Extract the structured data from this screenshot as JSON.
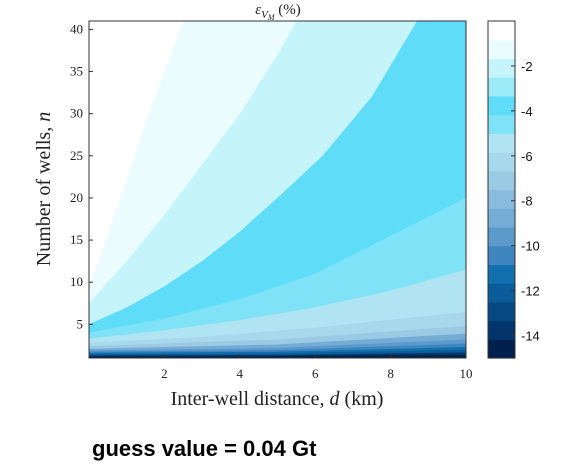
{
  "chart_data": {
    "type": "heatmap",
    "subtype": "filled-contour",
    "title_base": "ε",
    "title_sub": "V",
    "title_subsub": "M",
    "title_suffix": " (%)",
    "xlabel": "Inter-well distance, d (km)",
    "xlabel_parts": [
      "Inter-well distance, ",
      "d",
      " (km)"
    ],
    "ylabel": "Number of wells, n",
    "ylabel_parts": [
      "Number of wells, ",
      "n"
    ],
    "xlim": [
      0,
      10
    ],
    "ylim": [
      1,
      41
    ],
    "x_ticks": [
      2,
      4,
      6,
      8,
      10
    ],
    "y_ticks": [
      5,
      10,
      15,
      20,
      25,
      30,
      35,
      40
    ],
    "colorbar": {
      "range": [
        -15,
        0
      ],
      "ticks": [
        -2,
        -4,
        -6,
        -8,
        -10,
        -12,
        -14
      ],
      "colors": [
        "#00204e",
        "#03356a",
        "#064982",
        "#0a5d99",
        "#1170ad",
        "#3e86bf",
        "#5c9acc",
        "#74acd6",
        "#88bbdd",
        "#9acae4",
        "#a8d8ec",
        "#b0e4f2",
        "#80e2f6",
        "#5edcf8",
        "#9aeaf8",
        "#c6f4fb",
        "#eafcfe",
        "#ffffff"
      ]
    },
    "contours": [
      {
        "level": -1,
        "points": [
          [
            0,
            9.5
          ],
          [
            0.3,
            13
          ],
          [
            0.6,
            17
          ],
          [
            1,
            22
          ],
          [
            1.5,
            29
          ],
          [
            2,
            35
          ],
          [
            2.5,
            41
          ]
        ]
      },
      {
        "level": -2,
        "points": [
          [
            0,
            7.5
          ],
          [
            0.5,
            10
          ],
          [
            1,
            12.5
          ],
          [
            2,
            18
          ],
          [
            3,
            24
          ],
          [
            4,
            30
          ],
          [
            5,
            37
          ],
          [
            5.5,
            41
          ]
        ]
      },
      {
        "level": -3,
        "points": [
          [
            0,
            5
          ],
          [
            1,
            7
          ],
          [
            2,
            9.5
          ],
          [
            3,
            12.5
          ],
          [
            4,
            16
          ],
          [
            5,
            20
          ],
          [
            6.2,
            25
          ],
          [
            7.5,
            32
          ],
          [
            8.7,
            41
          ]
        ]
      },
      {
        "level": -4,
        "points": [
          [
            0,
            4
          ],
          [
            2,
            5.7
          ],
          [
            4,
            8
          ],
          [
            6,
            11
          ],
          [
            8,
            15.5
          ],
          [
            10,
            20
          ]
        ]
      },
      {
        "level": -5,
        "points": [
          [
            0,
            3.3
          ],
          [
            2,
            4.3
          ],
          [
            4,
            5.5
          ],
          [
            6,
            7
          ],
          [
            8,
            9
          ],
          [
            10,
            11.5
          ]
        ]
      },
      {
        "level": -6,
        "points": [
          [
            0,
            2.8
          ],
          [
            3,
            3.5
          ],
          [
            6,
            4.6
          ],
          [
            10,
            6.5
          ]
        ]
      },
      {
        "level": -7,
        "points": [
          [
            0,
            2.4
          ],
          [
            5,
            3.2
          ],
          [
            10,
            4.8
          ]
        ]
      },
      {
        "level": -8,
        "points": [
          [
            0,
            2.1
          ],
          [
            5,
            2.6
          ],
          [
            10,
            3.9
          ]
        ]
      },
      {
        "level": -9,
        "points": [
          [
            0,
            1.9
          ],
          [
            5,
            2.2
          ],
          [
            10,
            3.2
          ]
        ]
      },
      {
        "level": -10,
        "points": [
          [
            0,
            1.75
          ],
          [
            5,
            1.95
          ],
          [
            10,
            2.7
          ]
        ]
      },
      {
        "level": -11,
        "points": [
          [
            0,
            1.6
          ],
          [
            5,
            1.75
          ],
          [
            10,
            2.3
          ]
        ]
      },
      {
        "level": -12,
        "points": [
          [
            0,
            1.45
          ],
          [
            5,
            1.55
          ],
          [
            10,
            2.0
          ]
        ]
      },
      {
        "level": -13,
        "points": [
          [
            0,
            1.3
          ],
          [
            5,
            1.35
          ],
          [
            10,
            1.65
          ]
        ]
      },
      {
        "level": -14,
        "points": [
          [
            0,
            1.15
          ],
          [
            5,
            1.2
          ],
          [
            10,
            1.35
          ]
        ]
      }
    ]
  },
  "caption": "guess value = 0.04 Gt"
}
